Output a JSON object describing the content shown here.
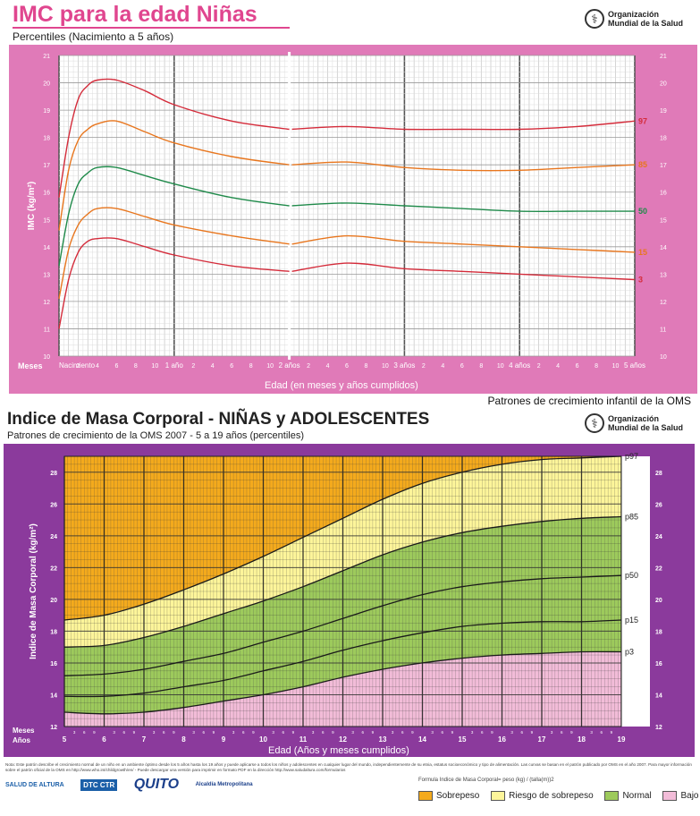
{
  "top": {
    "title": "IMC para la edad Niñas",
    "subtitle": "Percentiles (Nacimiento a 5 años)",
    "org": [
      "Organización",
      "Mundial de la Salud"
    ],
    "meses_label": "Meses",
    "xlabel": "Edad (en meses y años cumplidos)",
    "footer": "Patrones de crecimiento infantil de la OMS"
  },
  "bottom": {
    "title": "Indice de Masa Corporal - NIÑAS y  ADOLESCENTES",
    "subtitle": "Patrones de crecimiento de la OMS 2007 - 5 a 19 años (percentiles)",
    "org": [
      "Organización",
      "Mundial de la Salud"
    ],
    "meses_label": "Meses",
    "anos_label": "Años",
    "xlabel": "Edad (Años y meses cumplidos)",
    "note": "Nota: Este patrón describe el crecimiento normal de un niño en un ambiente óptimo desde los 5 años hasta los 19 años y puede aplicarse a todos los niños y adolescentes en cualquier lugar del mundo, independientemente de su etnia, estatus socioeconómico y tipo de alimentación. Las curvas se basan en el patrón publicado por OMS en el año 2007. Para mayor información sobre el patrón oficial de la OMS en http://www.who.int/childgrowth/en/ - Puede descargar una versión para imprimir en formato PDF en la dirección http://www.saludaltura.com/formularios",
    "formula": "Formula Indice de Masa Corporal= peso (kg) / (talla(m))2",
    "logos": [
      "SALUD DE ALTURA",
      "DTC CTR",
      "QUITO",
      "Alcaldía Metropolitana"
    ],
    "legend": [
      {
        "label": "Sobrepeso",
        "color": "#f4aa1c"
      },
      {
        "label": "Riesgo de sobrepeso",
        "color": "#fdf59a"
      },
      {
        "label": "Normal",
        "color": "#9dca5c"
      },
      {
        "label": "Bajo peso",
        "color": "#f2bcd8"
      }
    ]
  },
  "chart_data": [
    {
      "type": "line",
      "title": "IMC para la edad Niñas",
      "subtitle": "Percentiles (Nacimiento a 5 años)",
      "xlabel": "Edad (en meses y años cumplidos)",
      "ylabel": "IMC (kg/m²)",
      "x_unit": "months",
      "xlim": [
        0,
        60
      ],
      "ylim": [
        10,
        21
      ],
      "yticks": [
        10,
        11,
        12,
        13,
        14,
        15,
        16,
        17,
        18,
        19,
        20,
        21
      ],
      "xticks": [
        {
          "x": 0,
          "label": "Nacimiento"
        },
        {
          "x": 2,
          "label": "2"
        },
        {
          "x": 4,
          "label": "4"
        },
        {
          "x": 6,
          "label": "6"
        },
        {
          "x": 8,
          "label": "8"
        },
        {
          "x": 10,
          "label": "10"
        },
        {
          "x": 12,
          "label": "1 año"
        },
        {
          "x": 14,
          "label": "2"
        },
        {
          "x": 16,
          "label": "4"
        },
        {
          "x": 18,
          "label": "6"
        },
        {
          "x": 20,
          "label": "8"
        },
        {
          "x": 22,
          "label": "10"
        },
        {
          "x": 24,
          "label": "2 años"
        },
        {
          "x": 26,
          "label": "2"
        },
        {
          "x": 28,
          "label": "4"
        },
        {
          "x": 30,
          "label": "6"
        },
        {
          "x": 32,
          "label": "8"
        },
        {
          "x": 34,
          "label": "10"
        },
        {
          "x": 36,
          "label": "3 años"
        },
        {
          "x": 38,
          "label": "2"
        },
        {
          "x": 40,
          "label": "4"
        },
        {
          "x": 42,
          "label": "6"
        },
        {
          "x": 44,
          "label": "8"
        },
        {
          "x": 46,
          "label": "10"
        },
        {
          "x": 48,
          "label": "4 años"
        },
        {
          "x": 50,
          "label": "2"
        },
        {
          "x": 52,
          "label": "4"
        },
        {
          "x": 54,
          "label": "6"
        },
        {
          "x": 56,
          "label": "8"
        },
        {
          "x": 58,
          "label": "10"
        },
        {
          "x": 60,
          "label": "5 años"
        }
      ],
      "x": [
        0,
        1,
        2,
        3,
        4,
        6,
        9,
        12,
        18,
        24,
        30,
        36,
        42,
        48,
        54,
        60
      ],
      "series": [
        {
          "name": "97",
          "color": "#d42b3a",
          "values": [
            15.8,
            18.0,
            19.4,
            19.9,
            20.1,
            20.1,
            19.7,
            19.2,
            18.6,
            18.3,
            18.4,
            18.3,
            18.3,
            18.3,
            18.4,
            18.6
          ]
        },
        {
          "name": "85",
          "color": "#e8761e",
          "values": [
            14.6,
            16.8,
            17.9,
            18.3,
            18.5,
            18.6,
            18.2,
            17.8,
            17.3,
            17.0,
            17.1,
            16.9,
            16.8,
            16.8,
            16.9,
            17.0
          ]
        },
        {
          "name": "50",
          "color": "#1f8a4a",
          "values": [
            13.3,
            15.2,
            16.3,
            16.7,
            16.9,
            16.9,
            16.6,
            16.3,
            15.8,
            15.5,
            15.6,
            15.5,
            15.4,
            15.3,
            15.3,
            15.3
          ]
        },
        {
          "name": "15",
          "color": "#e8761e",
          "values": [
            12.1,
            13.9,
            14.8,
            15.2,
            15.4,
            15.4,
            15.1,
            14.8,
            14.4,
            14.1,
            14.4,
            14.2,
            14.1,
            14.0,
            13.9,
            13.8
          ]
        },
        {
          "name": "3",
          "color": "#d42b3a",
          "values": [
            11.0,
            12.8,
            13.8,
            14.2,
            14.3,
            14.3,
            14.0,
            13.7,
            13.3,
            13.1,
            13.4,
            13.2,
            13.1,
            13.0,
            12.9,
            12.8
          ]
        }
      ]
    },
    {
      "type": "area",
      "title": "Indice de Masa Corporal - NIÑAS y  ADOLESCENTES",
      "subtitle": "Patrones de crecimiento de la OMS 2007 - 5 a 19 años (percentiles)",
      "xlabel": "Edad (Años y meses cumplidos)",
      "ylabel": "Indice de Masa Corporal (kg/m²)",
      "x_unit": "years",
      "xlim": [
        5,
        19
      ],
      "ylim": [
        12,
        29
      ],
      "yticks": [
        12,
        14,
        16,
        18,
        20,
        22,
        24,
        26,
        28
      ],
      "xticks": [
        5,
        6,
        7,
        8,
        9,
        10,
        11,
        12,
        13,
        14,
        15,
        16,
        17,
        18,
        19
      ],
      "month_ticks": [
        "3",
        "6",
        "9"
      ],
      "x": [
        5,
        6,
        7,
        8,
        9,
        10,
        11,
        12,
        13,
        14,
        15,
        16,
        17,
        18,
        19
      ],
      "series": [
        {
          "name": "p97",
          "values": [
            18.7,
            19.0,
            19.7,
            20.6,
            21.6,
            22.7,
            23.9,
            25.1,
            26.3,
            27.3,
            28.0,
            28.5,
            28.8,
            28.9,
            29.0
          ]
        },
        {
          "name": "p85",
          "values": [
            17.0,
            17.1,
            17.6,
            18.3,
            19.1,
            19.9,
            20.8,
            21.8,
            22.8,
            23.6,
            24.2,
            24.6,
            24.9,
            25.1,
            25.2
          ]
        },
        {
          "name": "p50",
          "values": [
            15.2,
            15.3,
            15.6,
            16.1,
            16.6,
            17.3,
            18.0,
            18.8,
            19.6,
            20.3,
            20.8,
            21.1,
            21.3,
            21.4,
            21.5
          ]
        },
        {
          "name": "p15",
          "values": [
            13.9,
            13.9,
            14.1,
            14.5,
            14.9,
            15.5,
            16.1,
            16.8,
            17.4,
            17.9,
            18.3,
            18.5,
            18.6,
            18.6,
            18.7
          ]
        },
        {
          "name": "p3",
          "values": [
            12.9,
            12.8,
            12.9,
            13.2,
            13.6,
            14.0,
            14.5,
            15.1,
            15.6,
            16.0,
            16.3,
            16.5,
            16.6,
            16.7,
            16.7
          ]
        }
      ],
      "bands": [
        {
          "label": "Sobrepeso",
          "above": "p97",
          "color": "#f4aa1c"
        },
        {
          "label": "Riesgo de sobrepeso",
          "between": [
            "p85",
            "p97"
          ],
          "color": "#fdf59a"
        },
        {
          "label": "Normal",
          "between": [
            "p15",
            "p85"
          ],
          "color": "#9dca5c"
        },
        {
          "label": "Bajo peso",
          "below": "p3",
          "color": "#f2bcd8"
        }
      ]
    }
  ]
}
